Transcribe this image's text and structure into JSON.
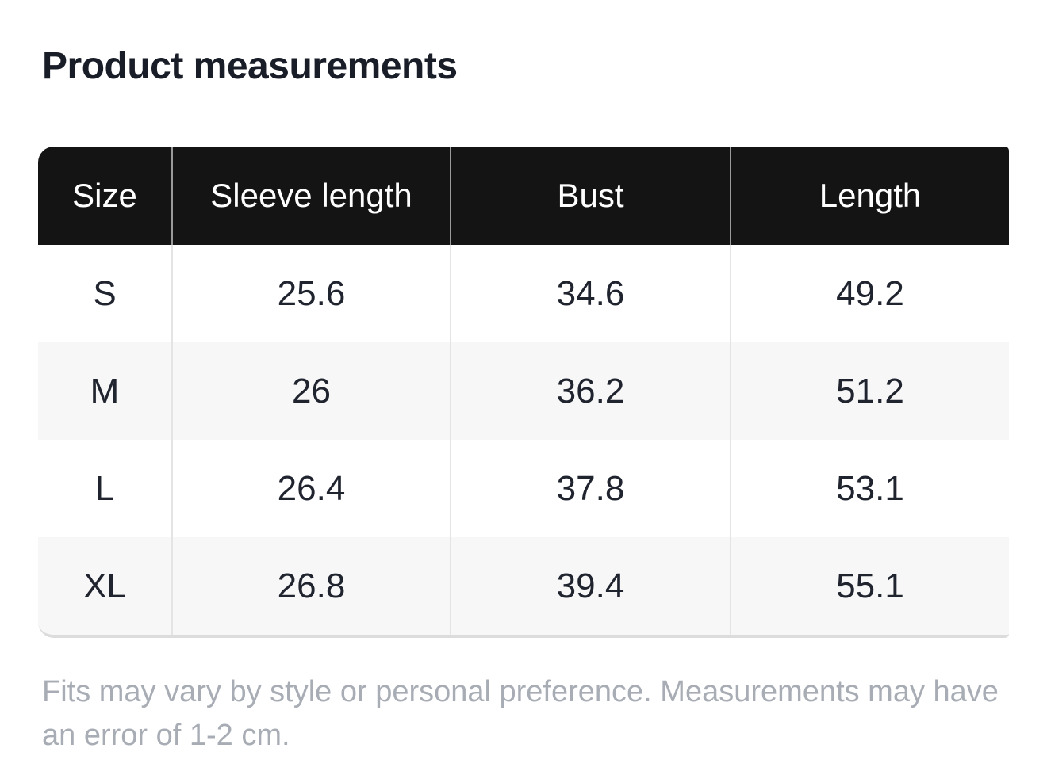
{
  "title": "Product measurements",
  "table": {
    "headers": [
      "Size",
      "Sleeve length",
      "Bust",
      "Length"
    ],
    "rows": [
      {
        "size": "S",
        "sleeve_length": "25.6",
        "bust": "34.6",
        "length": "49.2"
      },
      {
        "size": "M",
        "sleeve_length": "26",
        "bust": "36.2",
        "length": "51.2"
      },
      {
        "size": "L",
        "sleeve_length": "26.4",
        "bust": "37.8",
        "length": "53.1"
      },
      {
        "size": "XL",
        "sleeve_length": "26.8",
        "bust": "39.4",
        "length": "55.1"
      }
    ]
  },
  "footer_note": "Fits may vary by style or personal preference. Measurements may have an error of 1-2 cm.",
  "colors": {
    "page_background": "#ffffff",
    "title_text": "#191d28",
    "header_background": "#141414",
    "header_text": "#ffffff",
    "cell_text": "#20242f",
    "alt_row_background": "#f7f7f7",
    "column_divider": "#e4e4e4",
    "table_bottom_edge": "#dcdcdc",
    "footer_text": "#a8adb5"
  }
}
